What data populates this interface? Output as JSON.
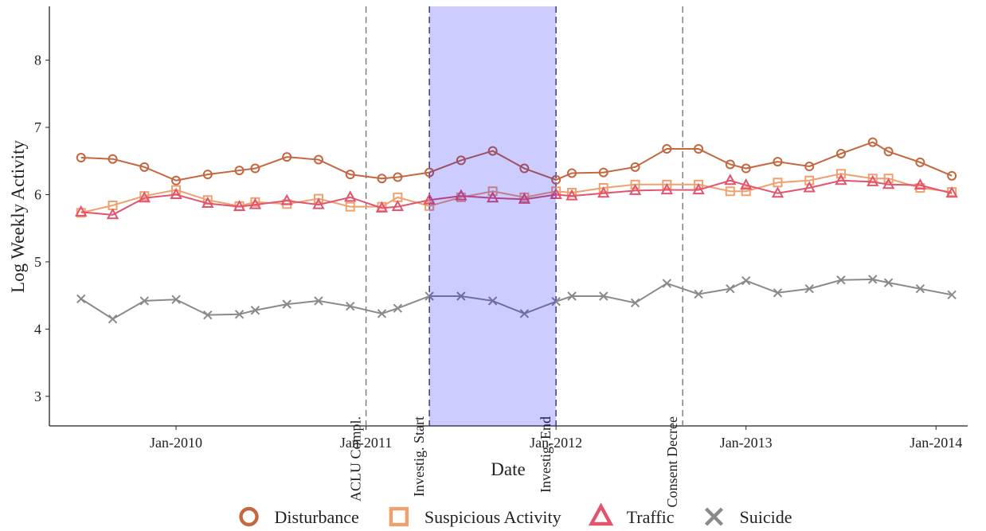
{
  "chart_data": {
    "type": "line",
    "x_label": "Date",
    "y_label": "Log Weekly Activity",
    "x": [
      "2009-07",
      "2009-09",
      "2009-11",
      "2010-01",
      "2010-03",
      "2010-05",
      "2010-06",
      "2010-08",
      "2010-10",
      "2010-12",
      "2011-02",
      "2011-03",
      "2011-05",
      "2011-07",
      "2011-09",
      "2011-11",
      "2012-01",
      "2012-02",
      "2012-04",
      "2012-06",
      "2012-08",
      "2012-10",
      "2012-12",
      "2013-01",
      "2013-03",
      "2013-05",
      "2013-07",
      "2013-09",
      "2013-10",
      "2013-12",
      "2014-02"
    ],
    "series": [
      {
        "name": "Disturbance",
        "color": "#c4663f",
        "marker": "circle",
        "values": [
          6.55,
          6.53,
          6.41,
          6.21,
          6.3,
          6.36,
          6.39,
          6.56,
          6.52,
          6.3,
          6.24,
          6.26,
          6.33,
          6.51,
          6.65,
          6.39,
          6.22,
          6.32,
          6.33,
          6.41,
          6.68,
          6.68,
          6.45,
          6.39,
          6.49,
          6.42,
          6.61,
          6.78,
          6.64,
          6.48,
          6.28
        ]
      },
      {
        "name": "Suspicious Activity",
        "color": "#f0a06e",
        "marker": "square",
        "values": [
          5.73,
          5.84,
          5.98,
          6.07,
          5.92,
          5.83,
          5.89,
          5.86,
          5.94,
          5.82,
          5.82,
          5.96,
          5.83,
          5.96,
          6.05,
          5.96,
          6.05,
          6.03,
          6.1,
          6.15,
          6.15,
          6.15,
          6.05,
          6.05,
          6.18,
          6.21,
          6.31,
          6.24,
          6.24,
          6.1,
          6.04
        ]
      },
      {
        "name": "Traffic",
        "color": "#e2536e",
        "marker": "triangle",
        "values": [
          5.74,
          5.7,
          5.95,
          6.0,
          5.87,
          5.82,
          5.85,
          5.91,
          5.85,
          5.96,
          5.8,
          5.82,
          5.92,
          5.98,
          5.95,
          5.93,
          6.0,
          5.98,
          6.02,
          6.06,
          6.07,
          6.07,
          6.21,
          6.14,
          6.02,
          6.1,
          6.21,
          6.19,
          6.15,
          6.14,
          6.02
        ]
      },
      {
        "name": "Suicide",
        "color": "#8a8a8a",
        "marker": "x",
        "values": [
          4.45,
          4.15,
          4.42,
          4.44,
          4.21,
          4.22,
          4.28,
          4.37,
          4.42,
          4.34,
          4.23,
          4.31,
          4.49,
          4.49,
          4.42,
          4.23,
          4.41,
          4.49,
          4.49,
          4.39,
          4.68,
          4.52,
          4.6,
          4.72,
          4.54,
          4.6,
          4.73,
          4.74,
          4.69,
          4.6,
          4.51
        ]
      }
    ],
    "xlim": [
      "2009-05",
      "2014-03"
    ],
    "xticks": [
      {
        "value": "2010-01",
        "label": "Jan-2010"
      },
      {
        "value": "2011-01",
        "label": "Jan-2011"
      },
      {
        "value": "2012-01",
        "label": "Jan-2012"
      },
      {
        "value": "2013-01",
        "label": "Jan-2013"
      },
      {
        "value": "2014-01",
        "label": "Jan-2014"
      }
    ],
    "ylim": [
      2.56,
      8.8
    ],
    "yticks": [
      3,
      4,
      5,
      6,
      7,
      8
    ],
    "grid": false,
    "legend": "bottom",
    "shaded_region": {
      "from": "2011-05",
      "to": "2012-01",
      "color": "#0000ff",
      "opacity": 0.2
    },
    "annotations": [
      {
        "x": "2011-01",
        "label": "ACLU Compl.",
        "color": "#777777"
      },
      {
        "x": "2011-05",
        "label": "Investig. Start",
        "color": "#333366"
      },
      {
        "x": "2012-01",
        "label": "Investig. End",
        "color": "#333388"
      },
      {
        "x": "2012-09",
        "label": "Consent Decree",
        "color": "#777777"
      }
    ]
  }
}
